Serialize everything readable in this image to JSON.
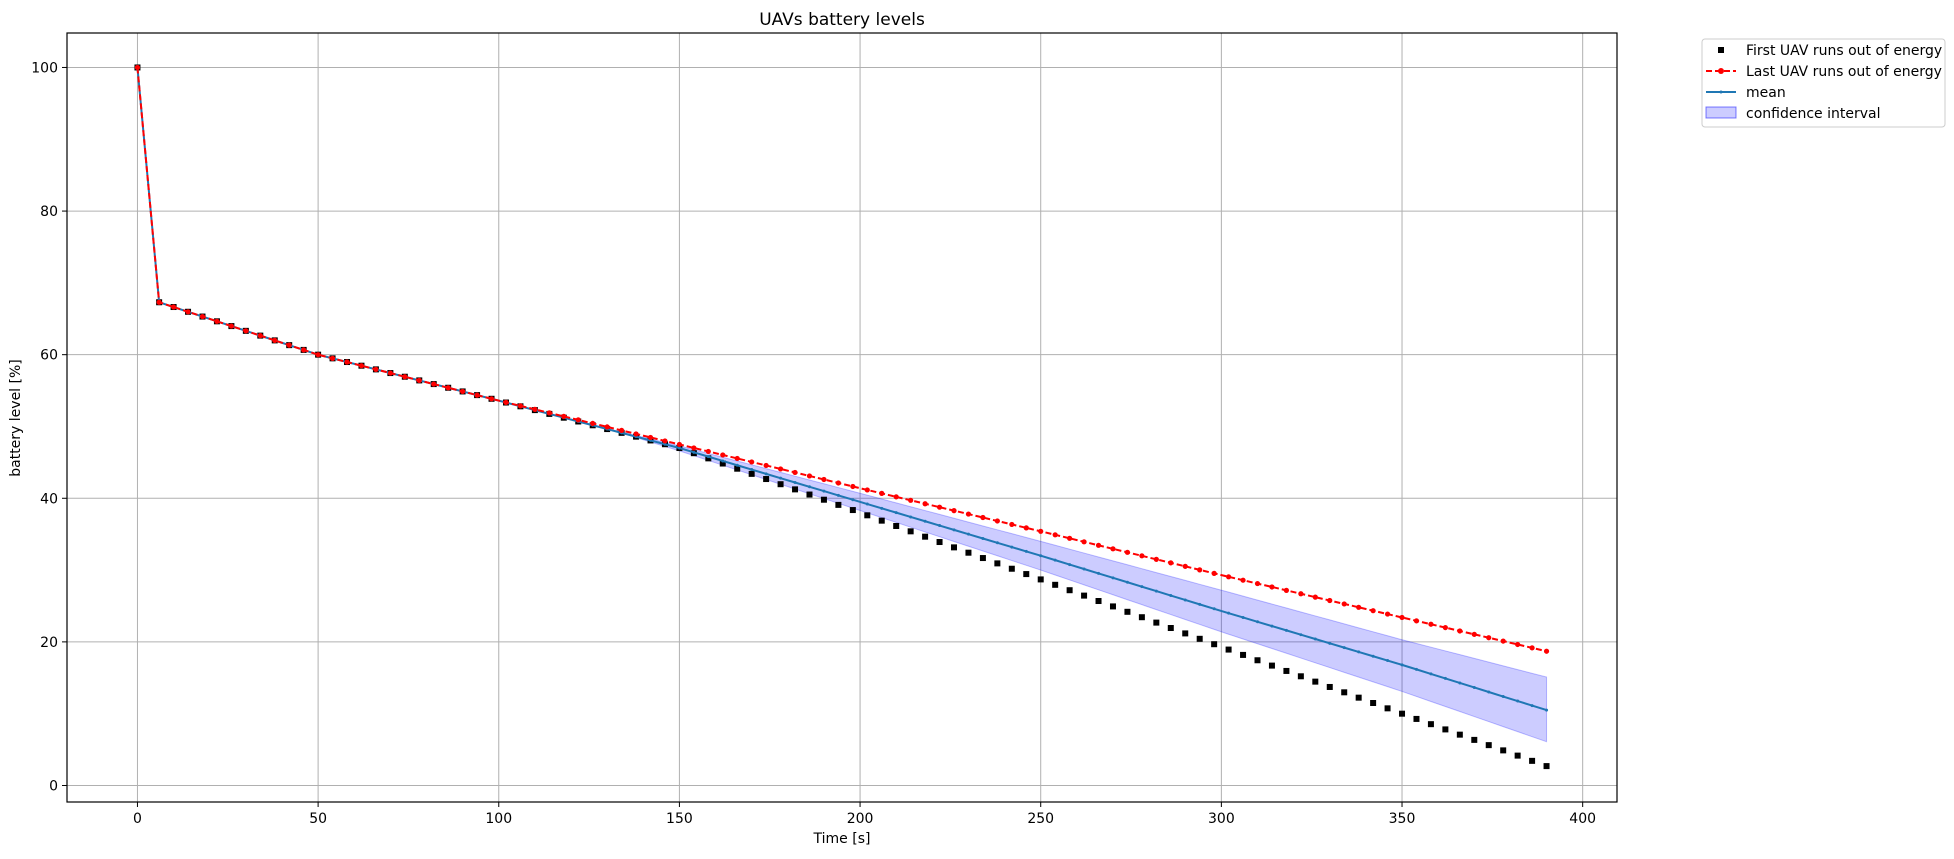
{
  "chart_data": {
    "type": "line",
    "title": "UAVs battery levels",
    "xlabel": "Time [s]",
    "ylabel": "battery level [%]",
    "xlim": [
      -19.5,
      409.5
    ],
    "ylim": [
      -2.3,
      104.8
    ],
    "x_ticks": [
      0,
      50,
      100,
      150,
      200,
      250,
      300,
      350,
      400
    ],
    "y_ticks": [
      0,
      20,
      40,
      60,
      80,
      100
    ],
    "grid": true,
    "legend_position": "outside-top-right",
    "colors": {
      "first": "#000000",
      "last": "#ff0000",
      "mean": "#1f77b4",
      "band": "#0000ff"
    },
    "legend": [
      {
        "key": "first",
        "label": "First UAV runs out of energy",
        "style": "square-markers"
      },
      {
        "key": "last",
        "label": "Last UAV runs out of energy",
        "style": "dashed-circle-markers"
      },
      {
        "key": "mean",
        "label": "mean",
        "style": "line-small-markers"
      },
      {
        "key": "band",
        "label": "confidence interval",
        "style": "fill"
      }
    ],
    "sampling": {
      "initial": [
        0,
        100
      ],
      "start": 6,
      "step": 4,
      "end": 390
    },
    "series": [
      {
        "name": "First UAV runs out of energy",
        "key": "first",
        "knots": [
          [
            0,
            100
          ],
          [
            6,
            67.3
          ],
          [
            50,
            60.0
          ],
          [
            100,
            53.6
          ],
          [
            150,
            47.0
          ],
          [
            200,
            38.0
          ],
          [
            250,
            28.7
          ],
          [
            300,
            19.3
          ],
          [
            350,
            10.0
          ],
          [
            390,
            2.7
          ]
        ]
      },
      {
        "name": "Last UAV runs out of energy",
        "key": "last",
        "knots": [
          [
            0,
            100
          ],
          [
            6,
            67.3
          ],
          [
            50,
            60.0
          ],
          [
            100,
            53.6
          ],
          [
            150,
            47.5
          ],
          [
            200,
            41.4
          ],
          [
            250,
            35.4
          ],
          [
            300,
            29.3
          ],
          [
            350,
            23.4
          ],
          [
            390,
            18.7
          ]
        ]
      },
      {
        "name": "mean",
        "key": "mean",
        "knots": [
          [
            0,
            100
          ],
          [
            6,
            67.3
          ],
          [
            50,
            60.0
          ],
          [
            100,
            53.6
          ],
          [
            150,
            47.0
          ],
          [
            200,
            39.5
          ],
          [
            250,
            32.0
          ],
          [
            300,
            24.3
          ],
          [
            350,
            16.8
          ],
          [
            390,
            10.5
          ]
        ]
      }
    ],
    "confidence_interval": {
      "name": "confidence interval",
      "key": "band",
      "upper": [
        [
          0,
          100
        ],
        [
          6,
          67.3
        ],
        [
          50,
          60.0
        ],
        [
          100,
          53.6
        ],
        [
          130,
          49.7
        ],
        [
          150,
          47.3
        ],
        [
          200,
          40.7
        ],
        [
          250,
          34.0
        ],
        [
          300,
          27.2
        ],
        [
          350,
          20.3
        ],
        [
          390,
          15.1
        ]
      ],
      "lower": [
        [
          0,
          100
        ],
        [
          6,
          67.3
        ],
        [
          50,
          60.0
        ],
        [
          100,
          53.6
        ],
        [
          130,
          49.7
        ],
        [
          150,
          46.6
        ],
        [
          200,
          38.3
        ],
        [
          250,
          30.0
        ],
        [
          300,
          21.4
        ],
        [
          350,
          13.1
        ],
        [
          390,
          6.1
        ]
      ]
    }
  }
}
